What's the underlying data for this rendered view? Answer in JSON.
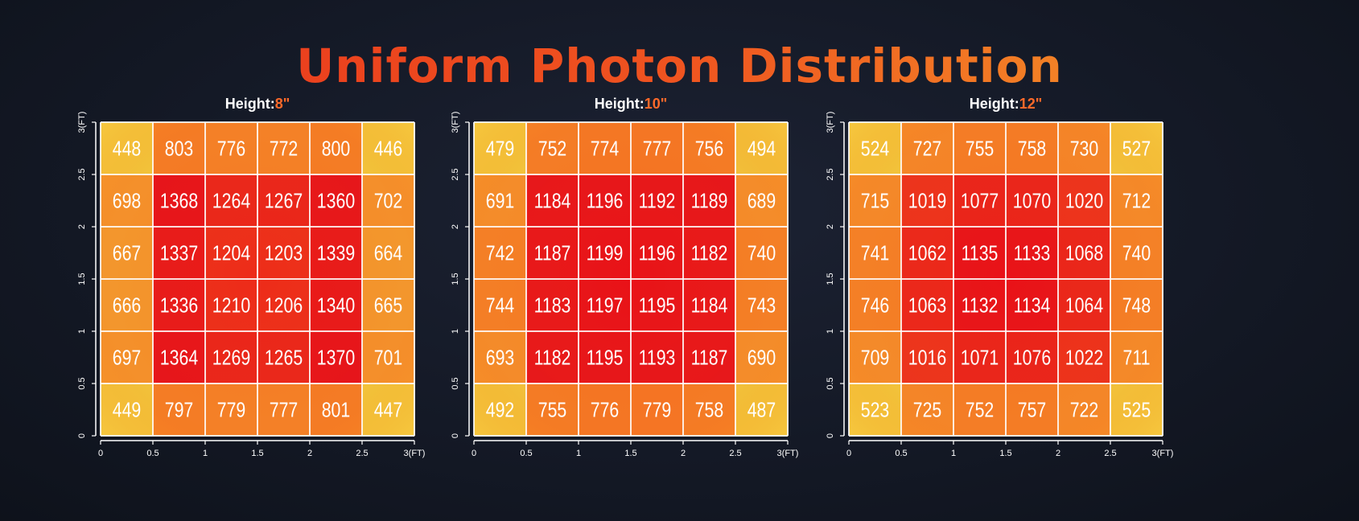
{
  "title": "Uniform Photon Distribution",
  "colors": {
    "background": "#141926",
    "title_start": "#e8321c",
    "title_end": "#f5a42a",
    "height_value": "#ff6a2a",
    "heat_low": "#f2c23a",
    "heat_mid": "#f5661f",
    "heat_high": "#e6141b"
  },
  "chart_data": [
    {
      "type": "heatmap",
      "title_prefix": "Height:",
      "title_value": "8\"",
      "x_ticks": [
        "0",
        "0.5",
        "1",
        "1.5",
        "2",
        "2.5",
        "3(FT)"
      ],
      "y_ticks": [
        "0",
        "0.5",
        "1",
        "1.5",
        "2",
        "2.5",
        "3(FT)"
      ],
      "xlim": [
        0,
        3
      ],
      "ylim": [
        0,
        3
      ],
      "grid": true,
      "values": [
        [
          448,
          803,
          776,
          772,
          800,
          446
        ],
        [
          698,
          1368,
          1264,
          1267,
          1360,
          702
        ],
        [
          667,
          1337,
          1204,
          1203,
          1339,
          664
        ],
        [
          666,
          1336,
          1210,
          1206,
          1340,
          665
        ],
        [
          697,
          1364,
          1269,
          1265,
          1370,
          701
        ],
        [
          449,
          797,
          779,
          777,
          801,
          447
        ]
      ]
    },
    {
      "type": "heatmap",
      "title_prefix": "Height:",
      "title_value": "10\"",
      "x_ticks": [
        "0",
        "0.5",
        "1",
        "1.5",
        "2",
        "2.5",
        "3(FT)"
      ],
      "y_ticks": [
        "0",
        "0.5",
        "1",
        "1.5",
        "2",
        "2.5",
        "3(FT)"
      ],
      "xlim": [
        0,
        3
      ],
      "ylim": [
        0,
        3
      ],
      "grid": true,
      "values": [
        [
          479,
          752,
          774,
          777,
          756,
          494
        ],
        [
          691,
          1184,
          1196,
          1192,
          1189,
          689
        ],
        [
          742,
          1187,
          1199,
          1196,
          1182,
          740
        ],
        [
          744,
          1183,
          1197,
          1195,
          1184,
          743
        ],
        [
          693,
          1182,
          1195,
          1193,
          1187,
          690
        ],
        [
          492,
          755,
          776,
          779,
          758,
          487
        ]
      ]
    },
    {
      "type": "heatmap",
      "title_prefix": "Height:",
      "title_value": "12\"",
      "x_ticks": [
        "0",
        "0.5",
        "1",
        "1.5",
        "2",
        "2.5",
        "3(FT)"
      ],
      "y_ticks": [
        "0",
        "0.5",
        "1",
        "1.5",
        "2",
        "2.5",
        "3(FT)"
      ],
      "xlim": [
        0,
        3
      ],
      "ylim": [
        0,
        3
      ],
      "grid": true,
      "values": [
        [
          524,
          727,
          755,
          758,
          730,
          527
        ],
        [
          715,
          1019,
          1077,
          1070,
          1020,
          712
        ],
        [
          741,
          1062,
          1135,
          1133,
          1068,
          740
        ],
        [
          746,
          1063,
          1132,
          1134,
          1064,
          748
        ],
        [
          709,
          1016,
          1071,
          1076,
          1022,
          711
        ],
        [
          523,
          725,
          752,
          757,
          722,
          525
        ]
      ]
    }
  ]
}
